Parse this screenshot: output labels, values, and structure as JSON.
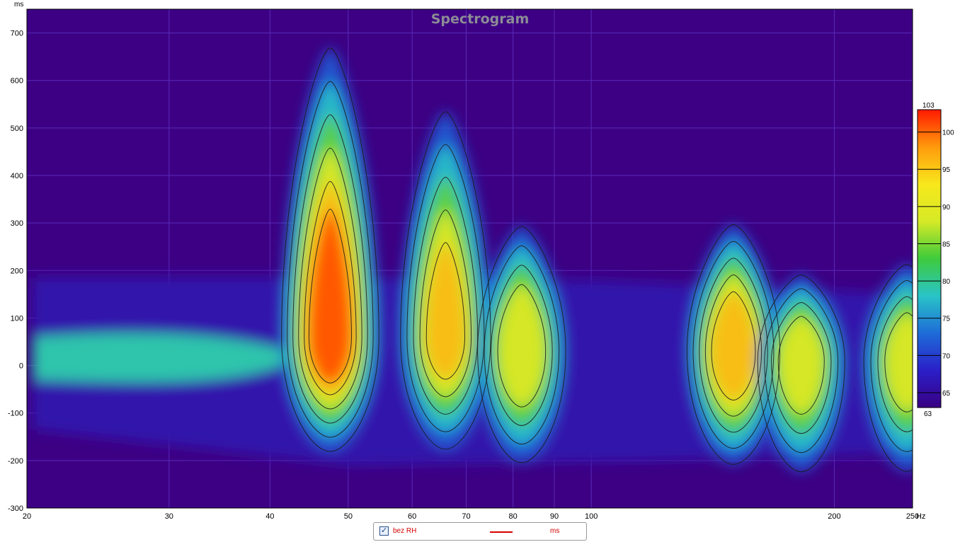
{
  "chart_data": {
    "type": "heatmap",
    "title": "Spectrogram",
    "x_axis": {
      "scale": "log",
      "unit": "Hz",
      "range": [
        20,
        250
      ],
      "ticks": [
        20,
        30,
        40,
        50,
        60,
        70,
        80,
        90,
        100,
        200,
        250
      ],
      "tick_labels": [
        "20",
        "30",
        "40",
        "50",
        "60",
        "70",
        "80",
        "90",
        "100",
        "200",
        "250"
      ]
    },
    "y_axis": {
      "unit": "ms",
      "range": [
        -300,
        750
      ],
      "ticks": [
        -300,
        -200,
        -100,
        0,
        100,
        200,
        300,
        400,
        500,
        600,
        700
      ],
      "tick_labels": [
        "-300",
        "-200",
        "-100",
        "0",
        "100",
        "200",
        "300",
        "400",
        "500",
        "600",
        "700"
      ]
    },
    "colorbar": {
      "range": [
        63,
        103
      ],
      "min_label": "63",
      "max_label": "103",
      "ticks": [
        65,
        70,
        75,
        80,
        85,
        90,
        95,
        100
      ],
      "tick_labels": [
        "65",
        "70",
        "75",
        "80",
        "85",
        "90",
        "95",
        "100"
      ],
      "colors": [
        "#3a0083",
        "#2a1fc8",
        "#1e6cd8",
        "#29c4c8",
        "#3ecb3c",
        "#d6ea26",
        "#f7e81c",
        "#ff9a0c",
        "#ff1a00"
      ]
    },
    "background_color": "#3d0084",
    "grid": true,
    "contours": true,
    "peaks": [
      {
        "freq_hz": 47.5,
        "time_ms": 60,
        "level_db": 102,
        "decay_top_ms": 715
      },
      {
        "freq_hz": 66,
        "time_ms": 60,
        "level_db": 94,
        "decay_top_ms": 580
      },
      {
        "freq_hz": 82,
        "time_ms": 30,
        "level_db": 92,
        "decay_top_ms": 320
      },
      {
        "freq_hz": 150,
        "time_ms": 30,
        "level_db": 97,
        "decay_top_ms": 320
      },
      {
        "freq_hz": 182,
        "time_ms": 10,
        "level_db": 91,
        "decay_top_ms": 210
      },
      {
        "freq_hz": 246,
        "time_ms": 10,
        "level_db": 90,
        "decay_top_ms": 235
      }
    ]
  },
  "legend": {
    "checked": true,
    "series_name": "bez RH",
    "units": "ms",
    "line_color": "#d40000"
  }
}
